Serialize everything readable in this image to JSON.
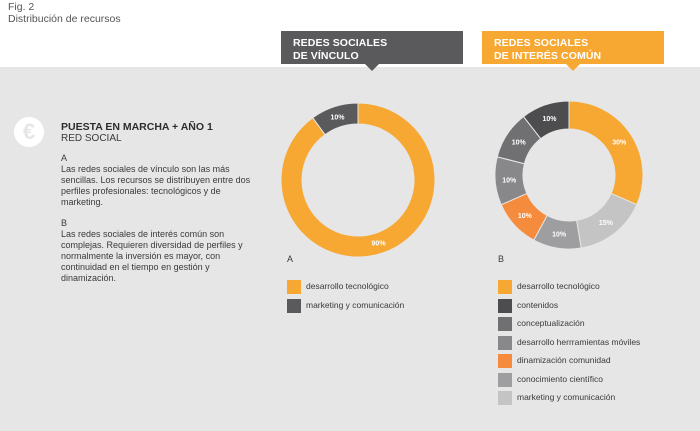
{
  "figure": {
    "label": "Fig. 2",
    "caption": "Distribución de recursos"
  },
  "headers": {
    "a": [
      "REDES SOCIALES",
      "DE VÍNCULO"
    ],
    "b": [
      "REDES SOCIALES",
      "DE INTERÉS COMÚN"
    ]
  },
  "info": {
    "icon": "€",
    "title": "PUESTA EN MARCHA + AÑO 1",
    "subtitle": "RED SOCIAL",
    "a_letter": "A",
    "a_text": "Las redes sociales de vínculo son las más sencillas. Los recursos se distribuyen entre dos perfiles profesionales: tecnológicos y de marketing.",
    "b_letter": "B",
    "b_text": "Las redes sociales de interés común son complejas. Requieren diversidad de perfiles y normalmente la inversión es mayor, con continuidad en el tiempo en gestión y dinamización."
  },
  "colors": {
    "orange": "#f7a833",
    "dark": "#5a5a5c",
    "mid": "#707072",
    "mid2": "#88888a",
    "accent": "#f58b3c",
    "grey": "#9e9ea0",
    "light": "#c4c4c4",
    "darkest": "#4d4d4f"
  },
  "chart_data": [
    {
      "type": "pie",
      "letter": "A",
      "values": [
        90,
        10
      ],
      "labels": [
        "90%",
        "10%"
      ],
      "legend": [
        "desarrollo tecnológico",
        "marketing y comunicación"
      ],
      "colors": [
        "#f7a833",
        "#5a5a5c"
      ]
    },
    {
      "type": "pie",
      "letter": "B",
      "values": [
        30,
        15,
        10,
        10,
        10,
        10,
        10
      ],
      "labels": [
        "30%",
        "15%",
        "10%",
        "10%",
        "10%",
        "10%",
        "10%"
      ],
      "legend_order": [
        0,
        6,
        5,
        4,
        3,
        2,
        1
      ],
      "legend": [
        "desarrollo tecnológico",
        "contenidos",
        "conceptualización",
        "desarrollo herrramientas móviles",
        "dinamización comunidad",
        "conocimiento científico",
        "marketing y comunicación"
      ],
      "colors": [
        "#f7a833",
        "#c4c4c4",
        "#9e9ea0",
        "#f58b3c",
        "#88888a",
        "#707072",
        "#4d4d4f"
      ]
    }
  ]
}
